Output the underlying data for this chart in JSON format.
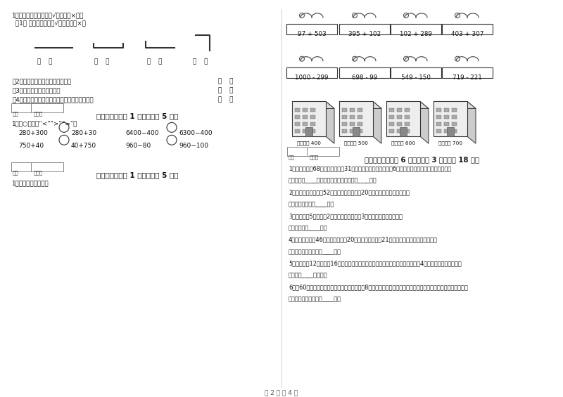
{
  "bg_color": "#ffffff",
  "page_num": "第 2 页 共 4 页",
  "left": {
    "q5_header": "1、让我来判断（对的打√，错的打×）。",
    "q5_sub1": "（1） 下面是线段的打√，不是的打×。",
    "q5_sub2": "（2）角的两条边越长，角就越大。",
    "q5_sub3": "（3）所有的直角都一样大。",
    "q5_sub4": "（4）一块正方形，剪去一个角后只剩下三个角。",
    "sec6_title": "六、比一比（共 1 大题，共计 5 分）",
    "sec6_sub": "1、在○里填上“<”“>”“=”。",
    "sec7_title": "七、连一连（共 1 大题，共计 5 分）",
    "sec7_sub": "1、估一估，连一连。"
  },
  "right": {
    "bird_row1": [
      "97 + 503",
      "395 + 102",
      "102 + 289",
      "403 + 307"
    ],
    "bird_row2": [
      "1000 - 299",
      "698 - 99",
      "549 - 150",
      "719 - 221"
    ],
    "building_labels": [
      "得数接近 400",
      "得数大约 500",
      "得数接近 600",
      "得数大约 700"
    ],
    "sec8_title": "八、解决问题（共 6 小题，每题 3 分，共计 18 分）",
    "sec8_problems": [
      "1、停车场上有68辆小汽车，开走31辆，还剩下多少辆？又开来6辆，现在停车场上有小汽车多少辆？",
      "答：还剩下____辆，现在停车场上有小汽车____辆。",
      "2、少年宫新购小提琲52把，中提琴比小提琲20把，两种琴一共有多少把？",
      "答：两种琴一共有____把。",
      "3、商店卖出5包白糖和2包红糖，平均每包化3元錢，一共卖了多少錢？",
      "答：一共卖了____元。",
      "4、水果店有水果46筐，上午卖出了20筐，下午又运进了21筐，水果店现在有水果多少筐？",
      "答：水果店现在有水果____筐。",
      "5、妈妈买了12只苹果和16只梨，如果要把它们全部装在袋子里，每只袋子只能裁4只水果，需要几只袋子？",
      "答：需要____只袋子。",
      "6、抄60个鸡蚂全部放在小盒子里，每个小盒放8个，剩下的放在最后一个小盒里，最后一个小盒里可以放多少个？",
      "答：最后一个小盒应放____个。"
    ]
  }
}
